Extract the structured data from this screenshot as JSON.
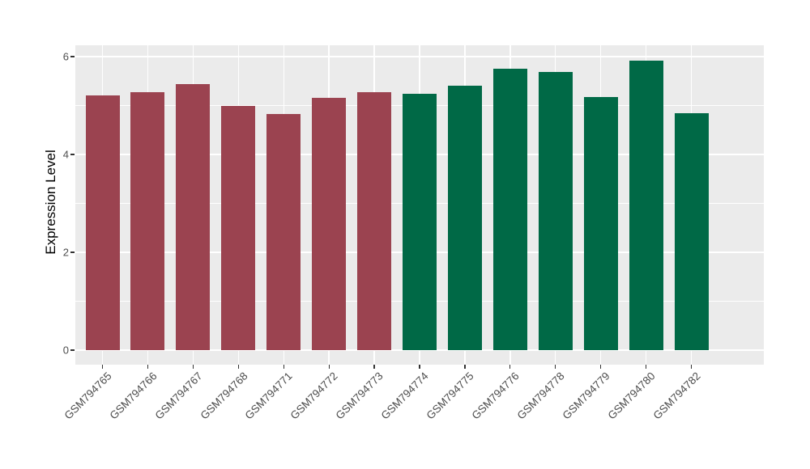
{
  "style": {
    "figure_background": "#FFFFFF",
    "panel_background": "#EBEBEB",
    "gridline_color": "#FFFFFF",
    "axis_text_color": "#4D4D4D",
    "axis_title_color": "#000000",
    "tick_mark_color": "#333333",
    "bar_color_group1": "#9B4350",
    "bar_color_group2": "#006946"
  },
  "chart_data": {
    "type": "bar",
    "title": "",
    "xlabel": "",
    "ylabel": "Expression Level",
    "legend": "none",
    "grid": "white major and minor gridlines on gray panel (ggplot style)",
    "ylim": [
      0,
      6.23
    ],
    "yticks": [
      {
        "value": 0,
        "label": "0"
      },
      {
        "value": 2,
        "label": "2"
      },
      {
        "value": 4,
        "label": "4"
      },
      {
        "value": 6,
        "label": "6"
      }
    ],
    "minor_gridlines": [
      1,
      3,
      5
    ],
    "categories": [
      "GSM794765",
      "GSM794766",
      "GSM794767",
      "GSM794768",
      "GSM794771",
      "GSM794772",
      "GSM794773",
      "GSM794774",
      "GSM794775",
      "GSM794776",
      "GSM794778",
      "GSM794779",
      "GSM794780",
      "GSM794782"
    ],
    "values": [
      5.2,
      5.27,
      5.43,
      5.0,
      4.83,
      5.15,
      5.28,
      5.24,
      5.4,
      5.75,
      5.68,
      5.17,
      5.92,
      4.85
    ],
    "bar_colors": [
      "#9B4350",
      "#9B4350",
      "#9B4350",
      "#9B4350",
      "#9B4350",
      "#9B4350",
      "#9B4350",
      "#006946",
      "#006946",
      "#006946",
      "#006946",
      "#006946",
      "#006946",
      "#006946"
    ]
  }
}
